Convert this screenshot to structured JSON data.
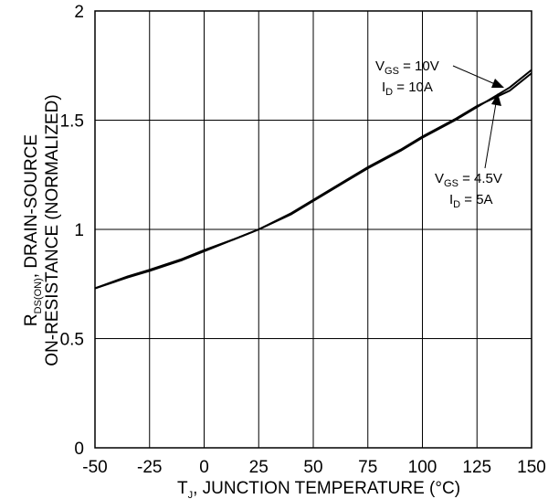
{
  "chart_data": {
    "type": "line",
    "xlabel": {
      "main": "T",
      "sub": "J",
      "rest": ", JUNCTION TEMPERATURE (°C)"
    },
    "ylabel": {
      "line1_main": "R",
      "line1_sub": "DS(ON)",
      "line1_rest": ", DRAIN-SOURCE",
      "line2": "ON-RESISTANCE (NORMALIZED)"
    },
    "xlim": [
      -50,
      150
    ],
    "ylim": [
      0,
      2
    ],
    "xticks": [
      "-50",
      "-25",
      "0",
      "25",
      "50",
      "75",
      "100",
      "125",
      "150"
    ],
    "yticks": [
      "0",
      "0.5",
      "1",
      "1.5",
      "2"
    ],
    "grid": true,
    "series": [
      {
        "annotation": {
          "l1_main": "V",
          "l1_sub": "GS",
          "l1_rest": " = 10V",
          "l2_main": "I",
          "l2_sub": "D",
          "l2_rest": " = 10A"
        },
        "x": [
          -50,
          -35,
          -25,
          -10,
          0,
          15,
          25,
          40,
          50,
          65,
          75,
          90,
          100,
          115,
          125,
          140,
          150
        ],
        "y": [
          0.73,
          0.78,
          0.81,
          0.86,
          0.9,
          0.96,
          1.0,
          1.07,
          1.13,
          1.22,
          1.28,
          1.36,
          1.42,
          1.5,
          1.56,
          1.65,
          1.73
        ]
      },
      {
        "annotation": {
          "l1_main": "V",
          "l1_sub": "GS",
          "l1_rest": " = 4.5V",
          "l2_main": "I",
          "l2_sub": "D",
          "l2_rest": " = 5A"
        },
        "x": [
          -50,
          -35,
          -25,
          -10,
          0,
          15,
          25,
          40,
          50,
          65,
          75,
          90,
          100,
          115,
          125,
          140,
          150
        ],
        "y": [
          0.73,
          0.785,
          0.815,
          0.865,
          0.905,
          0.96,
          1.0,
          1.075,
          1.135,
          1.225,
          1.285,
          1.365,
          1.425,
          1.505,
          1.565,
          1.635,
          1.715
        ]
      }
    ]
  }
}
